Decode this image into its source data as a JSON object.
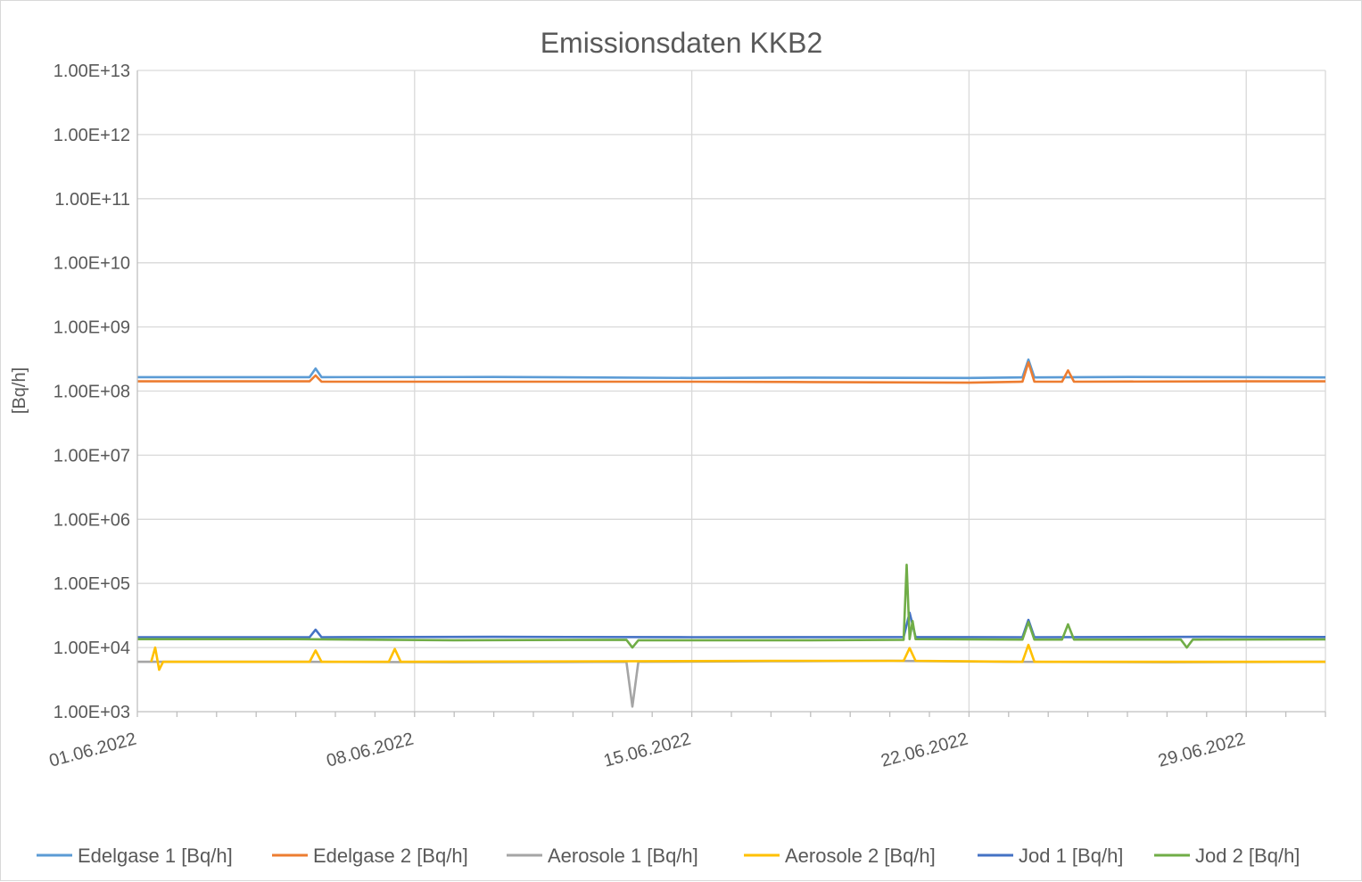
{
  "chart_data": {
    "type": "line",
    "title": "Emissionsdaten KKB2",
    "ylabel": "[Bq/h]",
    "xlabel": "",
    "y_scale": "log",
    "ylim": [
      1000,
      10000000000000
    ],
    "y_ticks": [
      {
        "value": 1000,
        "label": "1.00E+03"
      },
      {
        "value": 10000,
        "label": "1.00E+04"
      },
      {
        "value": 100000,
        "label": "1.00E+05"
      },
      {
        "value": 1000000,
        "label": "1.00E+06"
      },
      {
        "value": 10000000,
        "label": "1.00E+07"
      },
      {
        "value": 100000000,
        "label": "1.00E+08"
      },
      {
        "value": 1000000000,
        "label": "1.00E+09"
      },
      {
        "value": 10000000000,
        "label": "1.00E+10"
      },
      {
        "value": 100000000000,
        "label": "1.00E+11"
      },
      {
        "value": 1000000000000,
        "label": "1.00E+12"
      },
      {
        "value": 10000000000000,
        "label": "1.00E+13"
      }
    ],
    "xlim": [
      "01.06.2022",
      "01.07.2022"
    ],
    "x_ticks": [
      "01.06.2022",
      "08.06.2022",
      "15.06.2022",
      "22.06.2022",
      "29.06.2022"
    ],
    "grid": true,
    "legend_position": "bottom",
    "series": [
      {
        "name": "Edelgase 1 [Bq/h]",
        "color": "#5B9BD5",
        "points": [
          [
            "01.06.2022",
            165000000
          ],
          [
            "05.06.2022",
            165000000
          ],
          [
            "05.06.2022",
            225000000
          ],
          [
            "05.06.2022",
            165000000
          ],
          [
            "10.06.2022",
            166000000
          ],
          [
            "15.06.2022",
            160000000
          ],
          [
            "18.06.2022",
            162000000
          ],
          [
            "22.06.2022",
            160000000
          ],
          [
            "23.06.2022",
            163000000
          ],
          [
            "23.06.2022",
            310000000
          ],
          [
            "23.06.2022",
            163000000
          ],
          [
            "26.06.2022",
            166000000
          ],
          [
            "29.06.2022",
            165000000
          ],
          [
            "01.07.2022",
            163000000
          ]
        ]
      },
      {
        "name": "Edelgase 2 [Bq/h]",
        "color": "#ED7D31",
        "points": [
          [
            "01.06.2022",
            142000000
          ],
          [
            "05.06.2022",
            142000000
          ],
          [
            "05.06.2022",
            175000000
          ],
          [
            "05.06.2022",
            140000000
          ],
          [
            "10.06.2022",
            140000000
          ],
          [
            "15.06.2022",
            140000000
          ],
          [
            "18.06.2022",
            138000000
          ],
          [
            "22.06.2022",
            135000000
          ],
          [
            "23.06.2022",
            140000000
          ],
          [
            "23.06.2022",
            280000000
          ],
          [
            "23.06.2022",
            140000000
          ],
          [
            "24.06.2022",
            140000000
          ],
          [
            "24.06.2022",
            210000000
          ],
          [
            "24.06.2022",
            140000000
          ],
          [
            "29.06.2022",
            142000000
          ],
          [
            "01.07.2022",
            142000000
          ]
        ]
      },
      {
        "name": "Aerosole 1 [Bq/h]",
        "color": "#A5A5A5",
        "points": [
          [
            "01.06.2022",
            6000
          ],
          [
            "05.06.2022",
            6000
          ],
          [
            "09.06.2022",
            5900
          ],
          [
            "13.06.2022",
            6000
          ],
          [
            "13.06.2022",
            1200
          ],
          [
            "13.06.2022",
            6000
          ],
          [
            "17.06.2022",
            6100
          ],
          [
            "20.06.2022",
            6200
          ],
          [
            "23.06.2022",
            6000
          ],
          [
            "27.06.2022",
            5900
          ],
          [
            "01.07.2022",
            6000
          ]
        ]
      },
      {
        "name": "Aerosole 2 [Bq/h]",
        "color": "#FFC000",
        "points": [
          [
            "01.06.2022",
            6000
          ],
          [
            "01.06.2022",
            10000
          ],
          [
            "01.06.2022",
            4500
          ],
          [
            "01.06.2022",
            6000
          ],
          [
            "05.06.2022",
            6000
          ],
          [
            "05.06.2022",
            9000
          ],
          [
            "05.06.2022",
            6000
          ],
          [
            "07.06.2022",
            6000
          ],
          [
            "07.06.2022",
            9500
          ],
          [
            "07.06.2022",
            6000
          ],
          [
            "13.06.2022",
            6100
          ],
          [
            "17.06.2022",
            6200
          ],
          [
            "20.06.2022",
            6200
          ],
          [
            "20.06.2022",
            9800
          ],
          [
            "20.06.2022",
            6200
          ],
          [
            "23.06.2022",
            6000
          ],
          [
            "23.06.2022",
            11000
          ],
          [
            "23.06.2022",
            6000
          ],
          [
            "27.06.2022",
            6000
          ],
          [
            "01.07.2022",
            6000
          ]
        ]
      },
      {
        "name": "Jod 1 [Bq/h]",
        "color": "#4472C4",
        "points": [
          [
            "01.06.2022",
            14500
          ],
          [
            "05.06.2022",
            14500
          ],
          [
            "05.06.2022",
            19000
          ],
          [
            "05.06.2022",
            14500
          ],
          [
            "10.06.2022",
            14700
          ],
          [
            "15.06.2022",
            14500
          ],
          [
            "20.06.2022",
            14600
          ],
          [
            "20.06.2022",
            35000
          ],
          [
            "20.06.2022",
            14600
          ],
          [
            "23.06.2022",
            14500
          ],
          [
            "23.06.2022",
            27000
          ],
          [
            "23.06.2022",
            14500
          ],
          [
            "28.06.2022",
            14700
          ],
          [
            "01.07.2022",
            14600
          ]
        ]
      },
      {
        "name": "Jod 2 [Bq/h]",
        "color": "#70AD47",
        "points": [
          [
            "01.06.2022",
            13500
          ],
          [
            "05.06.2022",
            13500
          ],
          [
            "09.06.2022",
            13000
          ],
          [
            "13.06.2022",
            13200
          ],
          [
            "13.06.2022",
            10000
          ],
          [
            "13.06.2022",
            13000
          ],
          [
            "18.06.2022",
            13000
          ],
          [
            "20.06.2022",
            13200
          ],
          [
            "20.06.2022",
            195000
          ],
          [
            "20.06.2022",
            13500
          ],
          [
            "20.06.2022",
            26000
          ],
          [
            "20.06.2022",
            13500
          ],
          [
            "23.06.2022",
            13300
          ],
          [
            "23.06.2022",
            25000
          ],
          [
            "23.06.2022",
            13300
          ],
          [
            "24.06.2022",
            13300
          ],
          [
            "24.06.2022",
            23000
          ],
          [
            "24.06.2022",
            13300
          ],
          [
            "27.06.2022",
            13300
          ],
          [
            "27.06.2022",
            10000
          ],
          [
            "27.06.2022",
            13300
          ],
          [
            "01.07.2022",
            13400
          ]
        ]
      }
    ]
  }
}
